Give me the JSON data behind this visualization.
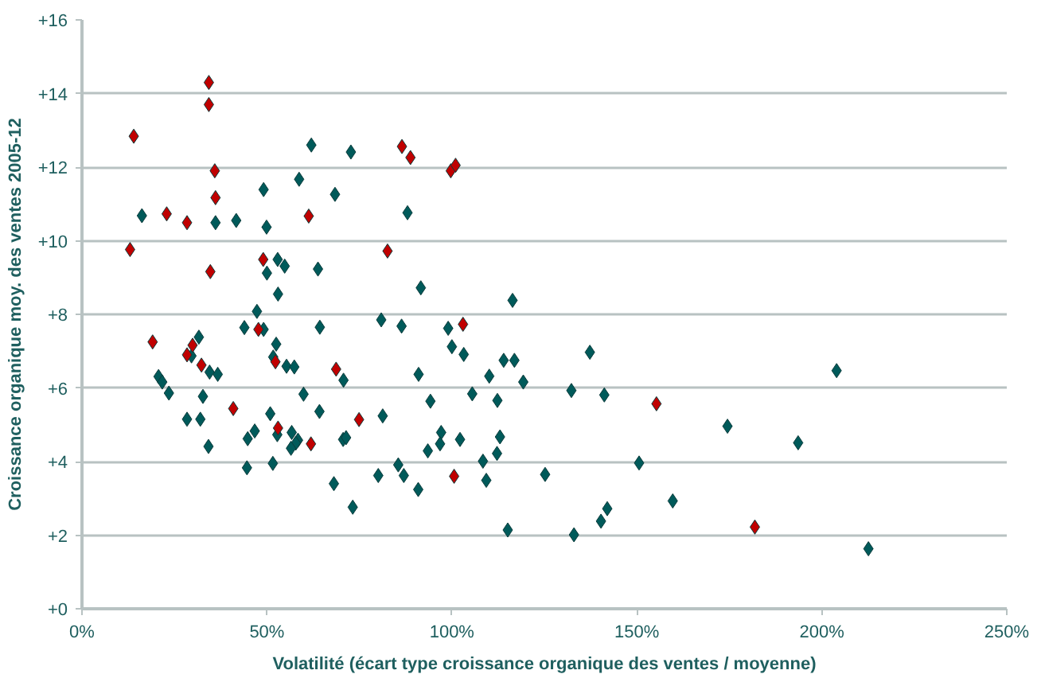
{
  "chart_data": {
    "type": "scatter",
    "xlabel": "Volatilité (écart type croissance organique des ventes / moyenne)",
    "ylabel": "Croissance organique moy. des ventes 2005-12",
    "marker": "diamond",
    "grid": "y",
    "xlim": [
      0,
      250
    ],
    "ylim": [
      0,
      16
    ],
    "xticks": [
      {
        "value": 0,
        "label": "0%"
      },
      {
        "value": 50,
        "label": "50%"
      },
      {
        "value": 100,
        "label": "100%"
      },
      {
        "value": 150,
        "label": "150%"
      },
      {
        "value": 200,
        "label": "200%"
      },
      {
        "value": 250,
        "label": "250%"
      }
    ],
    "yticks": [
      {
        "value": 0,
        "label": "+0"
      },
      {
        "value": 2,
        "label": "+2"
      },
      {
        "value": 4,
        "label": "+4"
      },
      {
        "value": 6,
        "label": "+6"
      },
      {
        "value": 8,
        "label": "+8"
      },
      {
        "value": 10,
        "label": "+10"
      },
      {
        "value": 12,
        "label": "+12"
      },
      {
        "value": 14,
        "label": "+14"
      },
      {
        "value": 16,
        "label": "+16"
      }
    ],
    "series": [
      {
        "color": "#005a5a",
        "x": [
          62.0,
          72.7,
          58.7,
          49.1,
          68.4,
          16.2,
          36.1,
          41.7,
          49.9,
          52.9,
          54.8,
          50.0,
          63.8,
          53.0,
          47.3,
          80.9,
          43.9,
          49.1,
          64.3,
          31.6,
          29.6,
          52.5,
          51.7,
          55.3,
          57.4,
          34.5,
          36.7,
          70.7,
          20.7,
          21.7,
          23.5,
          32.7,
          59.9,
          50.9,
          64.2,
          81.3,
          28.4,
          32.0,
          46.7,
          52.8,
          56.7,
          44.8,
          58.4,
          57.8,
          56.5,
          70.6,
          71.4,
          34.2,
          44.6,
          51.6,
          80.1,
          68.1,
          73.2,
          88.0,
          91.6,
          116.4,
          86.4,
          99.0,
          100.0,
          103.2,
          137.3,
          114.0,
          116.9,
          91.0,
          110.1,
          119.3,
          94.2,
          105.5,
          112.3,
          132.3,
          141.2,
          97.1,
          96.8,
          93.5,
          102.2,
          113.0,
          112.2,
          108.4,
          85.5,
          87.0,
          90.9,
          109.3,
          125.2,
          150.6,
          159.7,
          142.0,
          140.3,
          115.1,
          133.0,
          204.0,
          174.5,
          193.6,
          212.6
        ],
        "values": [
          12.6,
          12.41,
          11.67,
          11.39,
          11.26,
          10.68,
          10.49,
          10.55,
          10.37,
          9.49,
          9.31,
          9.12,
          9.23,
          8.55,
          8.08,
          7.85,
          7.64,
          7.59,
          7.65,
          7.38,
          6.87,
          7.19,
          6.84,
          6.59,
          6.57,
          6.43,
          6.37,
          6.21,
          6.31,
          6.16,
          5.86,
          5.77,
          5.83,
          5.3,
          5.36,
          5.24,
          5.15,
          5.15,
          4.83,
          4.73,
          4.79,
          4.62,
          4.58,
          4.5,
          4.36,
          4.6,
          4.65,
          4.41,
          3.83,
          3.95,
          3.62,
          3.4,
          2.76,
          10.76,
          8.72,
          8.38,
          7.68,
          7.62,
          7.12,
          6.91,
          6.97,
          6.75,
          6.75,
          6.37,
          6.32,
          6.16,
          5.64,
          5.84,
          5.66,
          5.93,
          5.81,
          4.79,
          4.48,
          4.29,
          4.6,
          4.67,
          4.22,
          4.01,
          3.91,
          3.62,
          3.24,
          3.49,
          3.65,
          3.96,
          2.93,
          2.72,
          2.38,
          2.14,
          2.01,
          6.47,
          4.96,
          4.51,
          1.63
        ]
      },
      {
        "color": "#c00000",
        "x": [
          34.3,
          34.3,
          14.0,
          35.9,
          36.1,
          22.9,
          28.4,
          61.3,
          13.0,
          82.6,
          49.0,
          34.7,
          47.7,
          19.1,
          29.9,
          28.4,
          52.3,
          32.3,
          68.7,
          40.9,
          74.9,
          53.0,
          61.9,
          86.5,
          88.8,
          99.7,
          101.0,
          103.0,
          155.3,
          100.6,
          181.9
        ],
        "values": [
          14.3,
          13.7,
          12.84,
          11.9,
          11.17,
          10.73,
          10.49,
          10.67,
          9.76,
          9.72,
          9.49,
          9.16,
          7.59,
          7.25,
          7.16,
          6.9,
          6.71,
          6.62,
          6.51,
          5.44,
          5.14,
          4.91,
          4.48,
          12.56,
          12.26,
          11.9,
          12.05,
          7.73,
          5.57,
          3.6,
          2.22
        ]
      }
    ]
  }
}
